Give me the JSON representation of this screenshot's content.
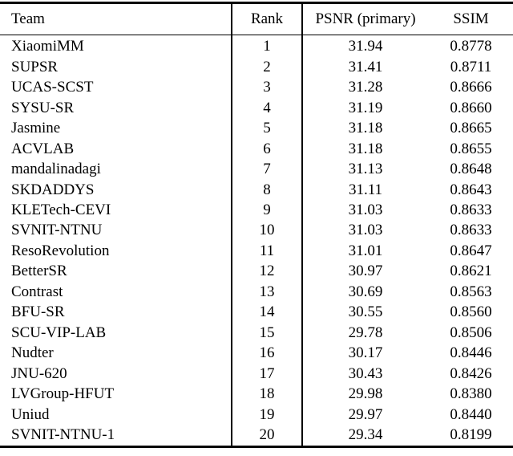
{
  "colors": {
    "text": "#000000",
    "background": "#ffffff",
    "rule": "#000000"
  },
  "table": {
    "columns": [
      {
        "label": "Team"
      },
      {
        "label": "Rank"
      },
      {
        "label": "PSNR (primary)"
      },
      {
        "label": "SSIM"
      }
    ],
    "rows": [
      {
        "team": "XiaomiMM",
        "rank": "1",
        "psnr": "31.94",
        "ssim": "0.8778"
      },
      {
        "team": "SUPSR",
        "rank": "2",
        "psnr": "31.41",
        "ssim": "0.8711"
      },
      {
        "team": "UCAS-SCST",
        "rank": "3",
        "psnr": "31.28",
        "ssim": "0.8666"
      },
      {
        "team": "SYSU-SR",
        "rank": "4",
        "psnr": "31.19",
        "ssim": "0.8660"
      },
      {
        "team": "Jasmine",
        "rank": "5",
        "psnr": "31.18",
        "ssim": "0.8665"
      },
      {
        "team": "ACVLAB",
        "rank": "6",
        "psnr": "31.18",
        "ssim": "0.8655"
      },
      {
        "team": "mandalinadagi",
        "rank": "7",
        "psnr": "31.13",
        "ssim": "0.8648"
      },
      {
        "team": "SKDADDYS",
        "rank": "8",
        "psnr": "31.11",
        "ssim": "0.8643"
      },
      {
        "team": "KLETech-CEVI",
        "rank": "9",
        "psnr": "31.03",
        "ssim": "0.8633"
      },
      {
        "team": "SVNIT-NTNU",
        "rank": "10",
        "psnr": "31.03",
        "ssim": "0.8633"
      },
      {
        "team": "ResoRevolution",
        "rank": "11",
        "psnr": "31.01",
        "ssim": "0.8647"
      },
      {
        "team": "BetterSR",
        "rank": "12",
        "psnr": "30.97",
        "ssim": "0.8621"
      },
      {
        "team": "Contrast",
        "rank": "13",
        "psnr": "30.69",
        "ssim": "0.8563"
      },
      {
        "team": "BFU-SR",
        "rank": "14",
        "psnr": "30.55",
        "ssim": "0.8560"
      },
      {
        "team": "SCU-VIP-LAB",
        "rank": "15",
        "psnr": "29.78",
        "ssim": "0.8506"
      },
      {
        "team": "Nudter",
        "rank": "16",
        "psnr": "30.17",
        "ssim": "0.8446"
      },
      {
        "team": "JNU-620",
        "rank": "17",
        "psnr": "30.43",
        "ssim": "0.8426"
      },
      {
        "team": "LVGroup-HFUT",
        "rank": "18",
        "psnr": "29.98",
        "ssim": "0.8380"
      },
      {
        "team": "Uniud",
        "rank": "19",
        "psnr": "29.97",
        "ssim": "0.8440"
      },
      {
        "team": "SVNIT-NTNU-1",
        "rank": "20",
        "psnr": "29.34",
        "ssim": "0.8199"
      }
    ]
  }
}
